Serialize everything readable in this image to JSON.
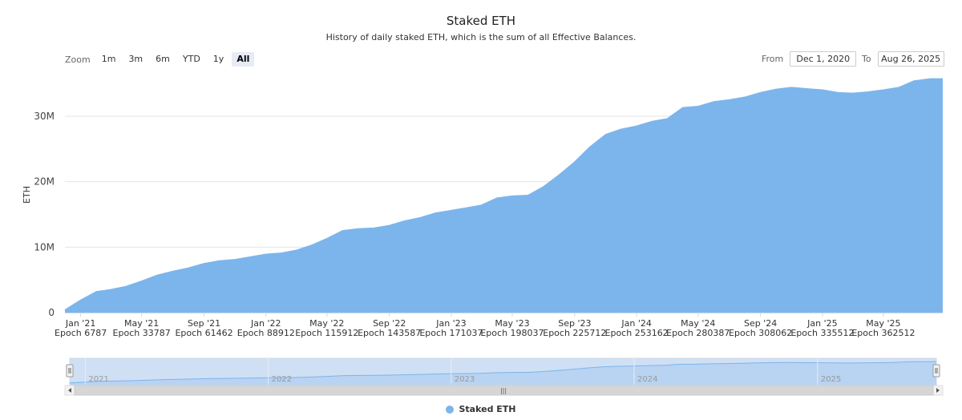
{
  "header": {
    "title": "Staked ETH",
    "subtitle": "History of daily staked ETH, which is the sum of all Effective Balances."
  },
  "zoom": {
    "label": "Zoom",
    "buttons": [
      "1m",
      "3m",
      "6m",
      "YTD",
      "1y",
      "All"
    ],
    "active": "All"
  },
  "range": {
    "from_label": "From",
    "from_value": "Dec 1, 2020",
    "to_label": "To",
    "to_value": "Aug 26, 2025"
  },
  "navigator": {
    "year_labels": [
      "2021",
      "2022",
      "2023",
      "2024",
      "2025"
    ],
    "scroll_grip": "|||"
  },
  "legend": {
    "label": "Staked ETH",
    "color": "#7cb5ec"
  },
  "chart_data": {
    "type": "area",
    "title": "Staked ETH",
    "ylabel": "ETH",
    "ylim": [
      0,
      36000000
    ],
    "y_ticks": [
      "0",
      "10M",
      "20M",
      "30M"
    ],
    "y_tick_values": [
      0,
      10000000,
      20000000,
      30000000
    ],
    "x_ticks": [
      {
        "label": "Jan '21",
        "epoch": "Epoch 6787"
      },
      {
        "label": "May '21",
        "epoch": "Epoch 33787"
      },
      {
        "label": "Sep '21",
        "epoch": "Epoch 61462"
      },
      {
        "label": "Jan '22",
        "epoch": "Epoch 88912"
      },
      {
        "label": "May '22",
        "epoch": "Epoch 115912"
      },
      {
        "label": "Sep '22",
        "epoch": "Epoch 143587"
      },
      {
        "label": "Jan '23",
        "epoch": "Epoch 171037"
      },
      {
        "label": "May '23",
        "epoch": "Epoch 198037"
      },
      {
        "label": "Sep '23",
        "epoch": "Epoch 225712"
      },
      {
        "label": "Jan '24",
        "epoch": "Epoch 253162"
      },
      {
        "label": "May '24",
        "epoch": "Epoch 280387"
      },
      {
        "label": "Sep '24",
        "epoch": "Epoch 308062"
      },
      {
        "label": "Jan '25",
        "epoch": "Epoch 335512"
      },
      {
        "label": "May '25",
        "epoch": "Epoch 362512"
      }
    ],
    "series": [
      {
        "name": "Staked ETH",
        "color": "#7cb5ec",
        "x": [
          "2020-12-01",
          "2021-01-01",
          "2021-02-01",
          "2021-03-01",
          "2021-04-01",
          "2021-05-01",
          "2021-06-01",
          "2021-07-01",
          "2021-08-01",
          "2021-09-01",
          "2021-10-01",
          "2021-11-01",
          "2021-12-01",
          "2022-01-01",
          "2022-02-01",
          "2022-03-01",
          "2022-04-01",
          "2022-05-01",
          "2022-06-01",
          "2022-07-01",
          "2022-08-01",
          "2022-09-01",
          "2022-10-01",
          "2022-11-01",
          "2022-12-01",
          "2023-01-01",
          "2023-02-01",
          "2023-03-01",
          "2023-04-01",
          "2023-05-01",
          "2023-06-01",
          "2023-07-01",
          "2023-08-01",
          "2023-09-01",
          "2023-10-01",
          "2023-11-01",
          "2023-12-01",
          "2024-01-01",
          "2024-02-01",
          "2024-03-01",
          "2024-04-01",
          "2024-05-01",
          "2024-06-01",
          "2024-07-01",
          "2024-08-01",
          "2024-09-01",
          "2024-10-01",
          "2024-11-01",
          "2024-12-01",
          "2025-01-01",
          "2025-02-01",
          "2025-03-01",
          "2025-04-01",
          "2025-05-01",
          "2025-06-01",
          "2025-07-01",
          "2025-08-01",
          "2025-08-26"
        ],
        "values": [
          400000,
          1900000,
          3200000,
          3500000,
          4000000,
          4800000,
          5700000,
          6300000,
          6800000,
          7500000,
          7900000,
          8100000,
          8500000,
          8900000,
          9100000,
          9500000,
          10300000,
          11300000,
          12500000,
          12800000,
          12900000,
          13300000,
          14000000,
          14500000,
          15200000,
          15600000,
          16000000,
          16400000,
          17500000,
          17800000,
          17900000,
          19200000,
          21000000,
          23000000,
          25300000,
          27200000,
          28000000,
          28500000,
          29200000,
          29600000,
          31300000,
          31500000,
          32200000,
          32500000,
          32900000,
          33600000,
          34100000,
          34400000,
          34200000,
          34000000,
          33600000,
          33500000,
          33700000,
          34000000,
          34400000,
          35400000,
          35700000,
          35700000
        ]
      }
    ]
  }
}
